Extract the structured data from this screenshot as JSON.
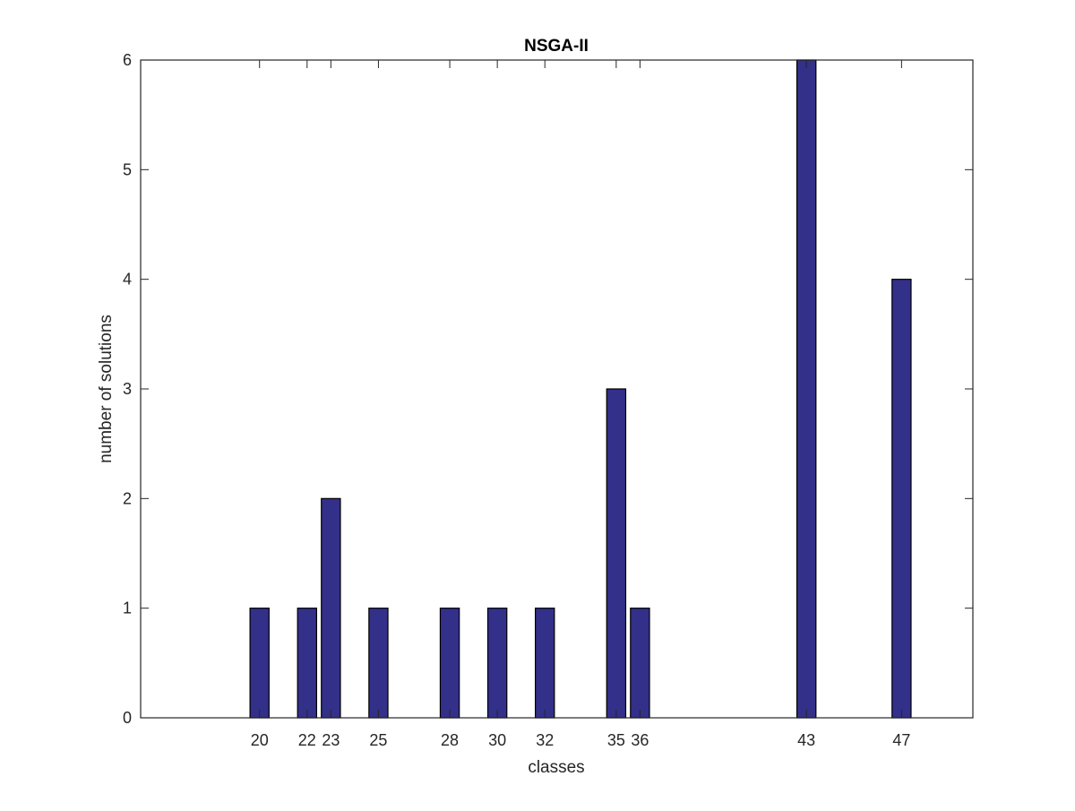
{
  "chart_data": {
    "type": "bar",
    "title": "NSGA-II",
    "xlabel": "classes",
    "ylabel": "number of solutions",
    "x": [
      20,
      22,
      23,
      25,
      28,
      30,
      32,
      35,
      36,
      43,
      47
    ],
    "values": [
      1,
      1,
      2,
      1,
      1,
      1,
      1,
      3,
      1,
      6,
      4
    ],
    "xticks": [
      20,
      22,
      23,
      25,
      28,
      30,
      32,
      35,
      36,
      43,
      47
    ],
    "yticks": [
      0,
      1,
      2,
      3,
      4,
      5,
      6
    ],
    "xlim": [
      15,
      50
    ],
    "ylim": [
      0,
      6
    ],
    "grid": false,
    "legend": "none",
    "bar_color": "#33308a",
    "edge_color": "#000000"
  }
}
